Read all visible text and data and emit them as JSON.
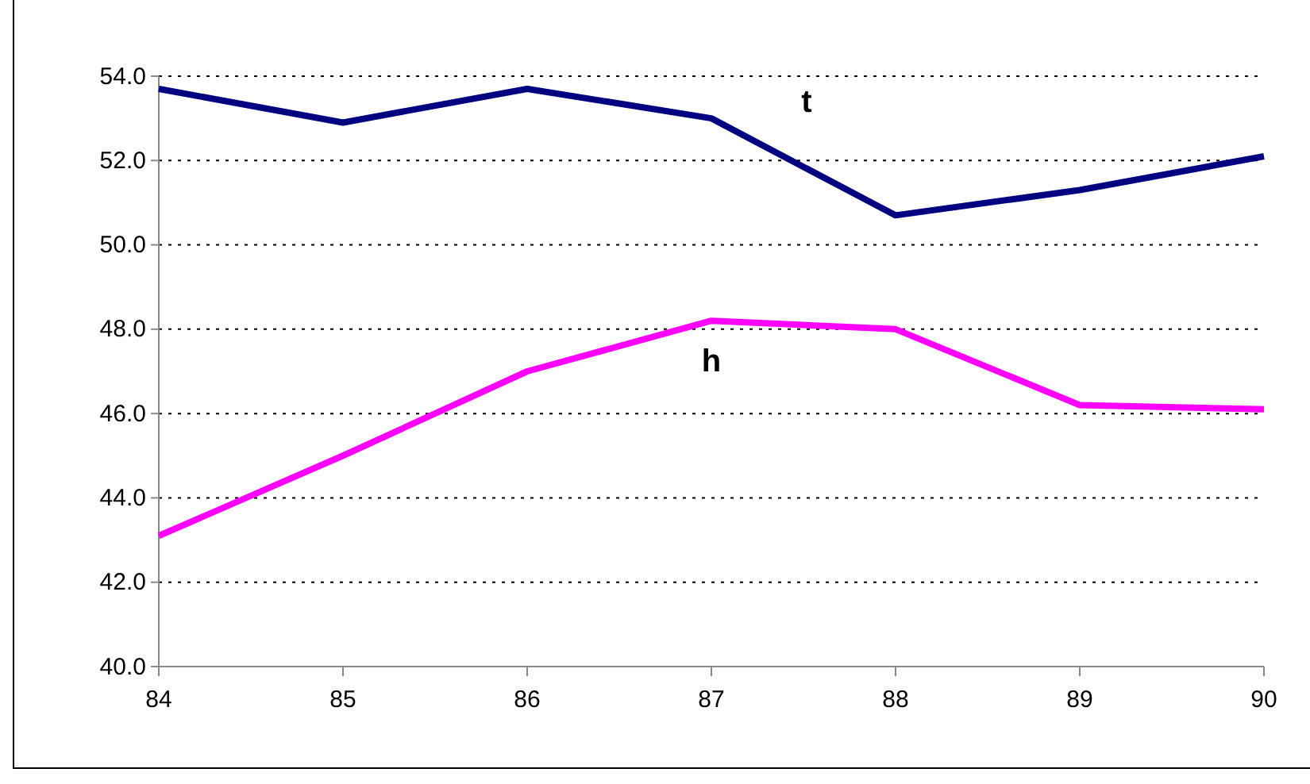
{
  "chart_data": {
    "type": "line",
    "x": [
      84,
      85,
      86,
      87,
      88,
      89,
      90
    ],
    "series": [
      {
        "name": "t",
        "color": "#000080",
        "values": [
          53.7,
          52.9,
          53.7,
          53.0,
          50.7,
          51.3,
          52.1
        ]
      },
      {
        "name": "h",
        "color": "#ff00ff",
        "values": [
          43.1,
          45.0,
          47.0,
          48.2,
          48.0,
          46.2,
          46.1
        ]
      }
    ],
    "xlim": [
      84,
      90
    ],
    "xticks": [
      84,
      85,
      86,
      87,
      88,
      89,
      90
    ],
    "ylim": [
      40,
      54
    ],
    "yticks": [
      {
        "value": 40,
        "label": "40.0"
      },
      {
        "value": 42,
        "label": "42.0"
      },
      {
        "value": 44,
        "label": "44.0"
      },
      {
        "value": 46,
        "label": "46.0"
      },
      {
        "value": 48,
        "label": "48.0"
      },
      {
        "value": 50,
        "label": "50.0"
      },
      {
        "value": 52,
        "label": "52.0"
      },
      {
        "value": 54,
        "label": "54.0"
      }
    ],
    "grid": "y",
    "marker": "none",
    "line_style": "solid",
    "legend": false
  }
}
